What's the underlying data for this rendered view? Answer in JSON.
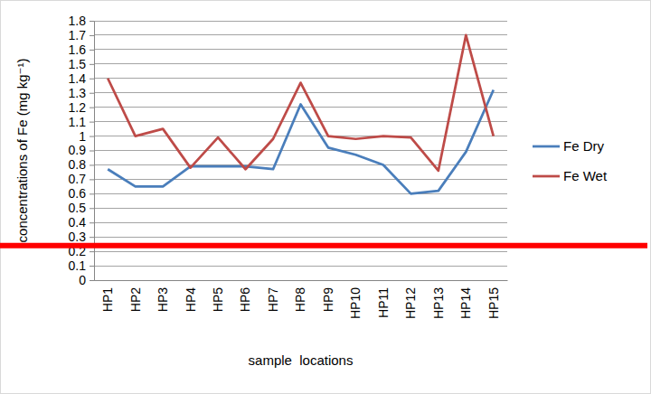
{
  "chart_data": {
    "type": "line",
    "y_label": "concentrations of Fe (mg kg⁻¹)",
    "x_label": "sample  locations",
    "categories": [
      "HP1",
      "HP2",
      "HP3",
      "HP4",
      "HP5",
      "HP6",
      "HP7",
      "HP8",
      "HP9",
      "HP10",
      "HP11",
      "HP12",
      "HP13",
      "HP14",
      "HP15"
    ],
    "series": [
      {
        "name": "Fe Dry",
        "color": "#4a7ebb",
        "values": [
          0.77,
          0.65,
          0.65,
          0.79,
          0.79,
          0.79,
          0.77,
          1.22,
          0.92,
          0.87,
          0.8,
          0.6,
          0.62,
          0.89,
          1.32
        ]
      },
      {
        "name": "Fe Wet",
        "color": "#be4b48",
        "values": [
          1.4,
          1.0,
          1.05,
          0.78,
          0.99,
          0.77,
          0.98,
          1.37,
          1.0,
          0.98,
          1.0,
          0.99,
          0.76,
          1.7,
          1.0
        ]
      }
    ],
    "reference_line": {
      "value": 0.24,
      "color": "#ff0000"
    },
    "ylim": [
      0,
      1.8
    ],
    "yticks": [
      0,
      0.1,
      0.2,
      0.3,
      0.4,
      0.5,
      0.6,
      0.7,
      0.8,
      0.9,
      1,
      1.1,
      1.2,
      1.3,
      1.4,
      1.5,
      1.6,
      1.7,
      1.8
    ],
    "grid": true,
    "legend": "right"
  }
}
